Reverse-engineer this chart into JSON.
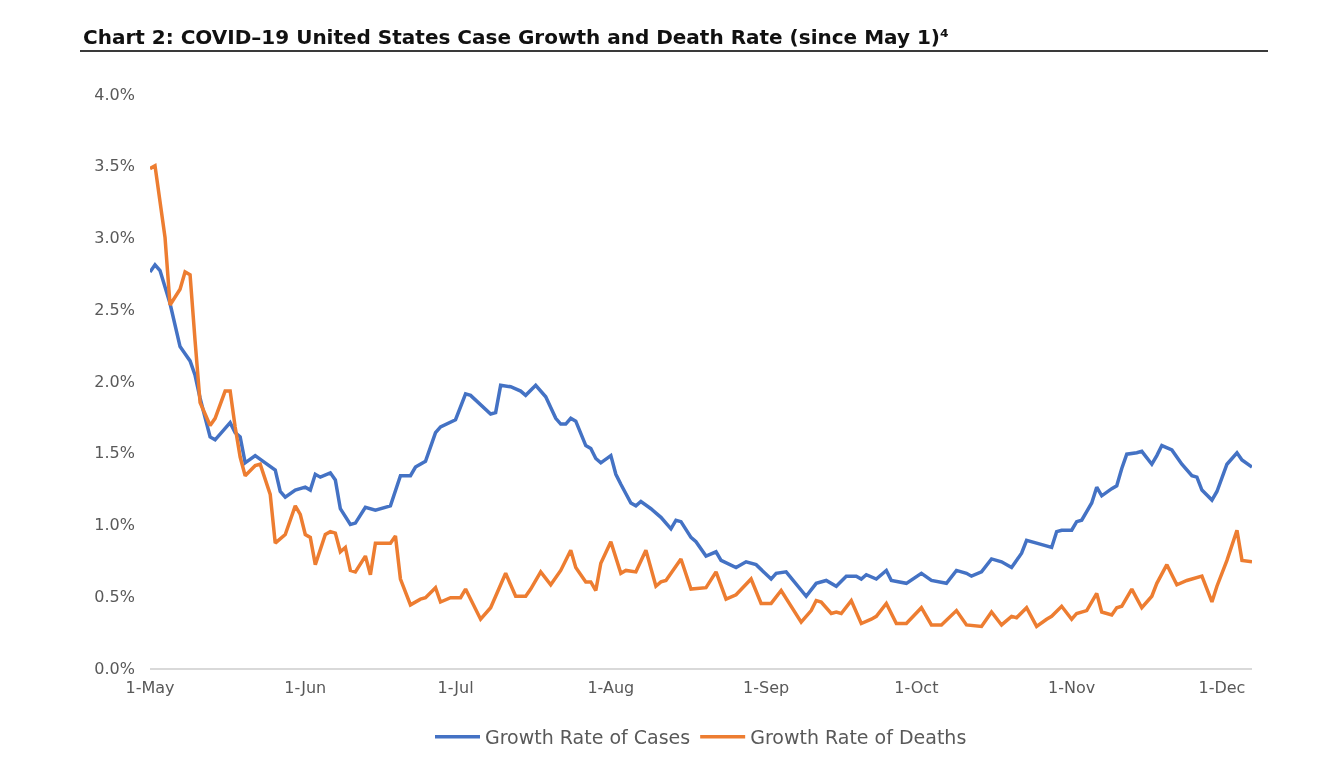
{
  "chart_data": {
    "type": "line",
    "title": "Chart 2: COVID–19 United States Case Growth and Death Rate (since May 1)⁴",
    "xlim": [
      "--05-01",
      "--12-07"
    ],
    "xticks": [
      {
        "value": "--05-01",
        "label": "1-May"
      },
      {
        "value": "--06-01",
        "label": "1-Jun"
      },
      {
        "value": "--07-01",
        "label": "1-Jul"
      },
      {
        "value": "--08-01",
        "label": "1-Aug"
      },
      {
        "value": "--09-01",
        "label": "1-Sep"
      },
      {
        "value": "--10-01",
        "label": "1-Oct"
      },
      {
        "value": "--11-01",
        "label": "1-Nov"
      },
      {
        "value": "--12-01",
        "label": "1-Dec"
      }
    ],
    "ylim": [
      0,
      4
    ],
    "yticks": [
      {
        "value": 0,
        "label": "0.0%"
      },
      {
        "value": 0.5,
        "label": "0.5%"
      },
      {
        "value": 1,
        "label": "1.0%"
      },
      {
        "value": 1.5,
        "label": "1.5%"
      },
      {
        "value": 2,
        "label": "2.0%"
      },
      {
        "value": 2.5,
        "label": "2.5%"
      },
      {
        "value": 3,
        "label": "3.0%"
      },
      {
        "value": 3.5,
        "label": "3.5%"
      },
      {
        "value": 4,
        "label": "4.0%"
      }
    ],
    "grid": false,
    "legend": "bottom",
    "marker": "none",
    "line_style": "solid",
    "series": [
      {
        "name": "Growth Rate of Cases",
        "color": "#4472c4",
        "x": [
          "--05-01",
          "--05-02",
          "--05-03",
          "--05-05",
          "--05-07",
          "--05-08",
          "--05-09",
          "--05-10",
          "--05-11",
          "--05-13",
          "--05-14",
          "--05-17",
          "--05-18",
          "--05-19",
          "--05-20",
          "--05-22",
          "--05-24",
          "--05-26",
          "--05-27",
          "--05-28",
          "--05-30",
          "--06-01",
          "--06-02",
          "--06-03",
          "--06-04",
          "--06-06",
          "--06-07",
          "--06-08",
          "--06-10",
          "--06-11",
          "--06-13",
          "--06-15",
          "--06-18",
          "--06-20",
          "--06-22",
          "--06-23",
          "--06-25",
          "--06-27",
          "--06-28",
          "--07-01",
          "--07-03",
          "--07-04",
          "--07-08",
          "--07-09",
          "--07-10",
          "--07-12",
          "--07-14",
          "--07-15",
          "--07-17",
          "--07-19",
          "--07-21",
          "--07-22",
          "--07-23",
          "--07-24",
          "--07-25",
          "--07-27",
          "--07-28",
          "--07-29",
          "--07-30",
          "--08-01",
          "--08-02",
          "--08-03",
          "--08-05",
          "--08-06",
          "--08-07",
          "--08-09",
          "--08-11",
          "--08-13",
          "--08-14",
          "--08-15",
          "--08-17",
          "--08-18",
          "--08-20",
          "--08-22",
          "--08-23",
          "--08-26",
          "--08-28",
          "--08-30",
          "--09-02",
          "--09-03",
          "--09-05",
          "--09-09",
          "--09-11",
          "--09-13",
          "--09-15",
          "--09-17",
          "--09-19",
          "--09-20",
          "--09-21",
          "--09-23",
          "--09-25",
          "--09-26",
          "--09-29",
          "--10-02",
          "--10-04",
          "--10-07",
          "--10-09",
          "--10-11",
          "--10-12",
          "--10-14",
          "--10-16",
          "--10-18",
          "--10-20",
          "--10-22",
          "--10-23",
          "--10-25",
          "--10-28",
          "--10-29",
          "--10-30",
          "--11-01",
          "--11-02",
          "--11-03",
          "--11-05",
          "--11-06",
          "--11-07",
          "--11-09",
          "--11-10",
          "--11-11",
          "--11-12",
          "--11-14",
          "--11-15",
          "--11-17",
          "--11-18",
          "--11-19",
          "--11-21",
          "--11-23",
          "--11-25",
          "--11-26",
          "--11-27",
          "--11-29",
          "--11-30",
          "--12-02",
          "--12-04",
          "--12-05",
          "--12-07"
        ],
        "values": [
          2.76,
          2.81,
          2.77,
          2.54,
          2.24,
          2.19,
          2.14,
          2.04,
          1.88,
          1.61,
          1.59,
          1.71,
          1.64,
          1.61,
          1.43,
          1.48,
          1.43,
          1.38,
          1.23,
          1.19,
          1.24,
          1.26,
          1.24,
          1.35,
          1.33,
          1.36,
          1.31,
          1.11,
          1.0,
          1.01,
          1.12,
          1.1,
          1.13,
          1.34,
          1.34,
          1.4,
          1.44,
          1.64,
          1.68,
          1.73,
          1.91,
          1.9,
          1.77,
          1.78,
          1.97,
          1.96,
          1.93,
          1.9,
          1.97,
          1.89,
          1.74,
          1.7,
          1.7,
          1.74,
          1.72,
          1.55,
          1.53,
          1.46,
          1.43,
          1.48,
          1.35,
          1.28,
          1.15,
          1.13,
          1.16,
          1.11,
          1.05,
          0.97,
          1.03,
          1.02,
          0.91,
          0.88,
          0.78,
          0.81,
          0.75,
          0.7,
          0.74,
          0.72,
          0.62,
          0.66,
          0.67,
          0.5,
          0.59,
          0.61,
          0.57,
          0.64,
          0.64,
          0.62,
          0.65,
          0.62,
          0.68,
          0.61,
          0.59,
          0.66,
          0.61,
          0.59,
          0.68,
          0.66,
          0.64,
          0.67,
          0.76,
          0.74,
          0.7,
          0.8,
          0.89,
          0.87,
          0.84,
          0.95,
          0.96,
          0.96,
          1.02,
          1.03,
          1.15,
          1.26,
          1.2,
          1.25,
          1.27,
          1.39,
          1.49,
          1.5,
          1.51,
          1.42,
          1.48,
          1.55,
          1.52,
          1.42,
          1.34,
          1.33,
          1.24,
          1.17,
          1.23,
          1.42,
          1.5,
          1.45,
          1.4
        ]
      },
      {
        "name": "Growth Rate of Deaths",
        "color": "#ed7d31",
        "x": [
          "--05-01",
          "--05-02",
          "--05-04",
          "--05-05",
          "--05-07",
          "--05-08",
          "--05-09",
          "--05-10",
          "--05-11",
          "--05-13",
          "--05-14",
          "--05-16",
          "--05-17",
          "--05-18",
          "--05-19",
          "--05-20",
          "--05-22",
          "--05-23",
          "--05-25",
          "--05-26",
          "--05-28",
          "--05-30",
          "--05-31",
          "--06-01",
          "--06-02",
          "--06-03",
          "--06-05",
          "--06-06",
          "--06-07",
          "--06-08",
          "--06-09",
          "--06-10",
          "--06-11",
          "--06-13",
          "--06-14",
          "--06-15",
          "--06-17",
          "--06-18",
          "--06-19",
          "--06-20",
          "--06-22",
          "--06-24",
          "--06-25",
          "--06-27",
          "--06-28",
          "--06-30",
          "--07-02",
          "--07-03",
          "--07-06",
          "--07-08",
          "--07-11",
          "--07-13",
          "--07-15",
          "--07-16",
          "--07-18",
          "--07-20",
          "--07-22",
          "--07-24",
          "--07-25",
          "--07-27",
          "--07-28",
          "--07-29",
          "--07-30",
          "--08-01",
          "--08-03",
          "--08-04",
          "--08-06",
          "--08-08",
          "--08-10",
          "--08-11",
          "--08-12",
          "--08-15",
          "--08-17",
          "--08-20",
          "--08-22",
          "--08-24",
          "--08-26",
          "--08-29",
          "--08-31",
          "--09-02",
          "--09-04",
          "--09-08",
          "--09-10",
          "--09-11",
          "--09-12",
          "--09-14",
          "--09-15",
          "--09-16",
          "--09-18",
          "--09-20",
          "--09-22",
          "--09-23",
          "--09-25",
          "--09-27",
          "--09-29",
          "--10-02",
          "--10-04",
          "--10-06",
          "--10-09",
          "--10-11",
          "--10-14",
          "--10-16",
          "--10-18",
          "--10-20",
          "--10-21",
          "--10-23",
          "--10-25",
          "--10-27",
          "--10-28",
          "--10-30",
          "--11-01",
          "--11-02",
          "--11-04",
          "--11-06",
          "--11-07",
          "--11-09",
          "--11-10",
          "--11-11",
          "--11-13",
          "--11-15",
          "--11-17",
          "--11-18",
          "--11-20",
          "--11-22",
          "--11-24",
          "--11-27",
          "--11-29",
          "--11-30",
          "--12-02",
          "--12-04",
          "--12-05",
          "--12-07"
        ],
        "values": [
          3.48,
          3.5,
          3.0,
          2.53,
          2.64,
          2.76,
          2.74,
          2.28,
          1.85,
          1.69,
          1.74,
          1.93,
          1.93,
          1.68,
          1.47,
          1.34,
          1.41,
          1.42,
          1.21,
          0.87,
          0.93,
          1.13,
          1.07,
          0.93,
          0.91,
          0.72,
          0.93,
          0.95,
          0.94,
          0.81,
          0.84,
          0.68,
          0.67,
          0.78,
          0.65,
          0.87,
          0.87,
          0.87,
          0.92,
          0.62,
          0.44,
          0.48,
          0.49,
          0.56,
          0.46,
          0.49,
          0.49,
          0.55,
          0.34,
          0.42,
          0.66,
          0.5,
          0.5,
          0.55,
          0.67,
          0.58,
          0.68,
          0.82,
          0.7,
          0.6,
          0.6,
          0.54,
          0.73,
          0.88,
          0.66,
          0.68,
          0.67,
          0.82,
          0.57,
          0.6,
          0.61,
          0.76,
          0.55,
          0.56,
          0.67,
          0.48,
          0.51,
          0.62,
          0.45,
          0.45,
          0.54,
          0.32,
          0.4,
          0.47,
          0.46,
          0.38,
          0.39,
          0.38,
          0.47,
          0.31,
          0.34,
          0.36,
          0.45,
          0.31,
          0.31,
          0.42,
          0.3,
          0.3,
          0.4,
          0.3,
          0.29,
          0.39,
          0.3,
          0.36,
          0.35,
          0.42,
          0.29,
          0.34,
          0.36,
          0.43,
          0.34,
          0.38,
          0.4,
          0.52,
          0.39,
          0.37,
          0.42,
          0.43,
          0.55,
          0.42,
          0.5,
          0.59,
          0.72,
          0.58,
          0.61,
          0.64,
          0.46,
          0.57,
          0.75,
          0.96,
          0.75,
          0.74
        ]
      }
    ]
  }
}
